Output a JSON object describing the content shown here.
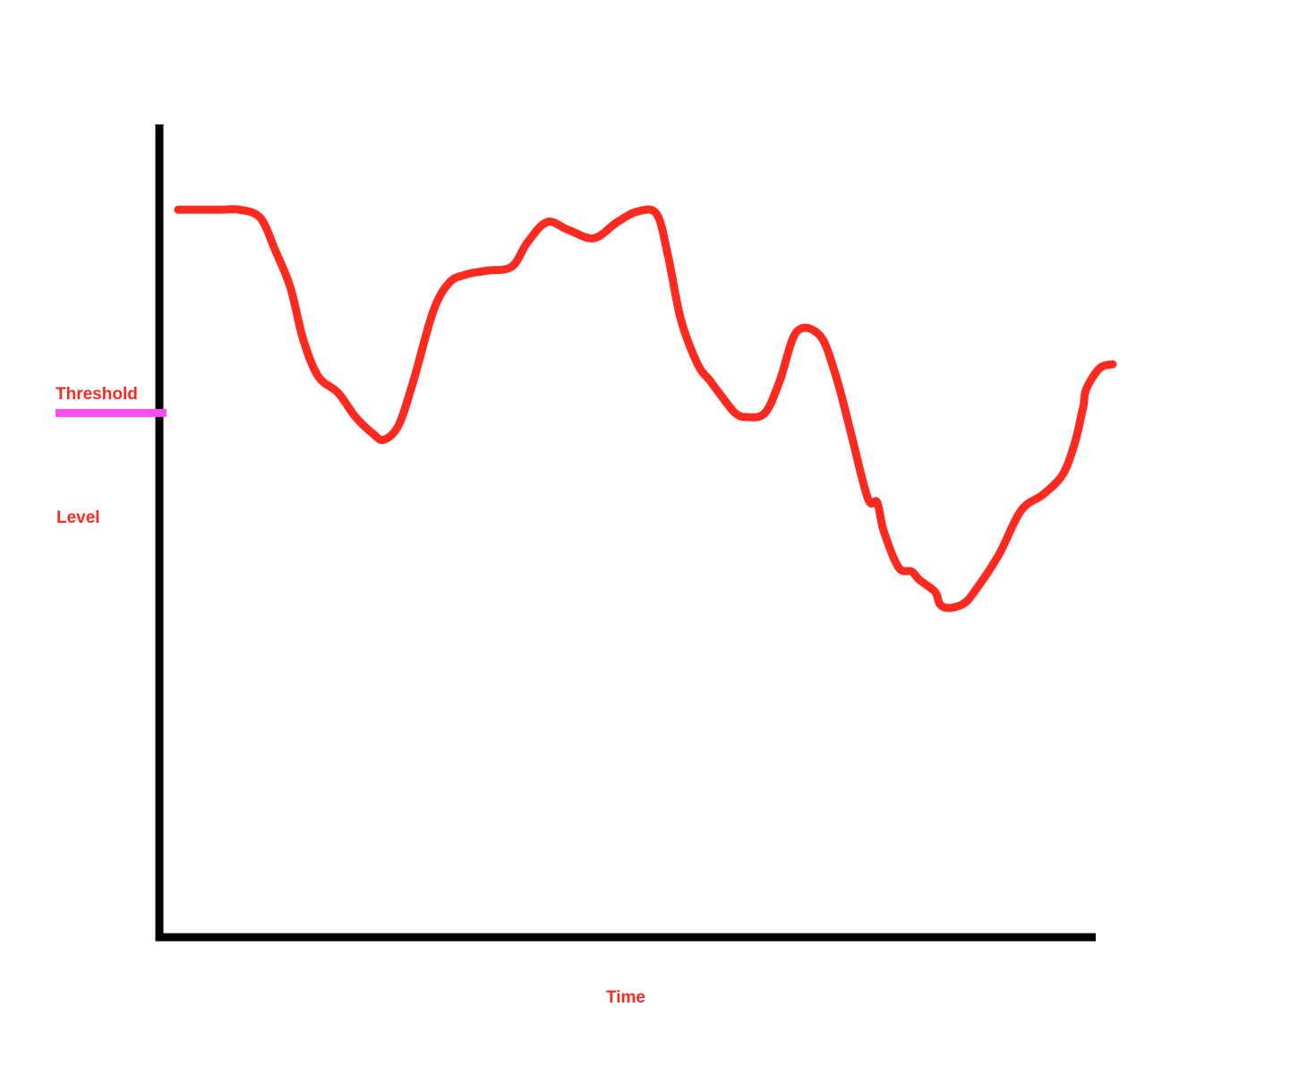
{
  "chart_data": {
    "type": "line",
    "title": "",
    "xlabel": "Time",
    "ylabel": "Level",
    "grid": false,
    "ticks": false,
    "xlim": [
      0,
      100
    ],
    "ylim": [
      0,
      100
    ],
    "threshold": {
      "label": "Threshold",
      "value": 64.5
    },
    "series": [
      {
        "x": [
          2.0,
          3.8,
          6.5,
          8.6,
          10.8,
          12.4,
          14.0,
          15.4,
          17.0,
          19.1,
          21.0,
          22.8,
          24.0,
          25.6,
          27.2,
          29.3,
          31.0,
          32.7,
          35.0,
          37.7,
          39.4,
          41.5,
          43.8,
          46.5,
          49.0,
          51.2,
          53.2,
          54.4,
          55.8,
          57.6,
          58.9,
          60.2,
          61.6,
          62.8,
          64.8,
          66.4,
          68.2,
          70.7,
          72.4,
          73.9,
          75.8,
          76.8,
          77.5,
          79.1,
          80.5,
          81.3,
          83.0,
          83.5,
          84.4,
          86.0,
          87.2,
          89.8,
          92.2,
          94.6,
          96.7,
          98.0,
          98.7,
          98.9,
          99.2,
          100.6,
          102.0
        ],
        "y": [
          89.5,
          89.5,
          89.5,
          89.5,
          88.5,
          84.5,
          80.0,
          73.5,
          69.0,
          67.0,
          64.0,
          62.0,
          61.2,
          63.0,
          68.5,
          77.0,
          80.5,
          81.5,
          82.0,
          82.5,
          85.5,
          88.0,
          87.0,
          86.0,
          88.0,
          89.3,
          89.0,
          84.0,
          76.0,
          70.5,
          68.5,
          66.5,
          64.5,
          64.0,
          64.5,
          68.5,
          74.5,
          74.0,
          69.0,
          62.5,
          54.0,
          53.5,
          50.0,
          45.5,
          45.0,
          44.0,
          42.5,
          41.0,
          40.5,
          41.0,
          42.5,
          47.0,
          52.5,
          54.5,
          57.0,
          61.0,
          64.5,
          65.5,
          67.5,
          70.0,
          70.5
        ]
      }
    ],
    "colors": {
      "line": "#ff2a1f",
      "threshold": "#ff4cf4",
      "axis": "#000000",
      "text": "#ff2a1f"
    }
  }
}
